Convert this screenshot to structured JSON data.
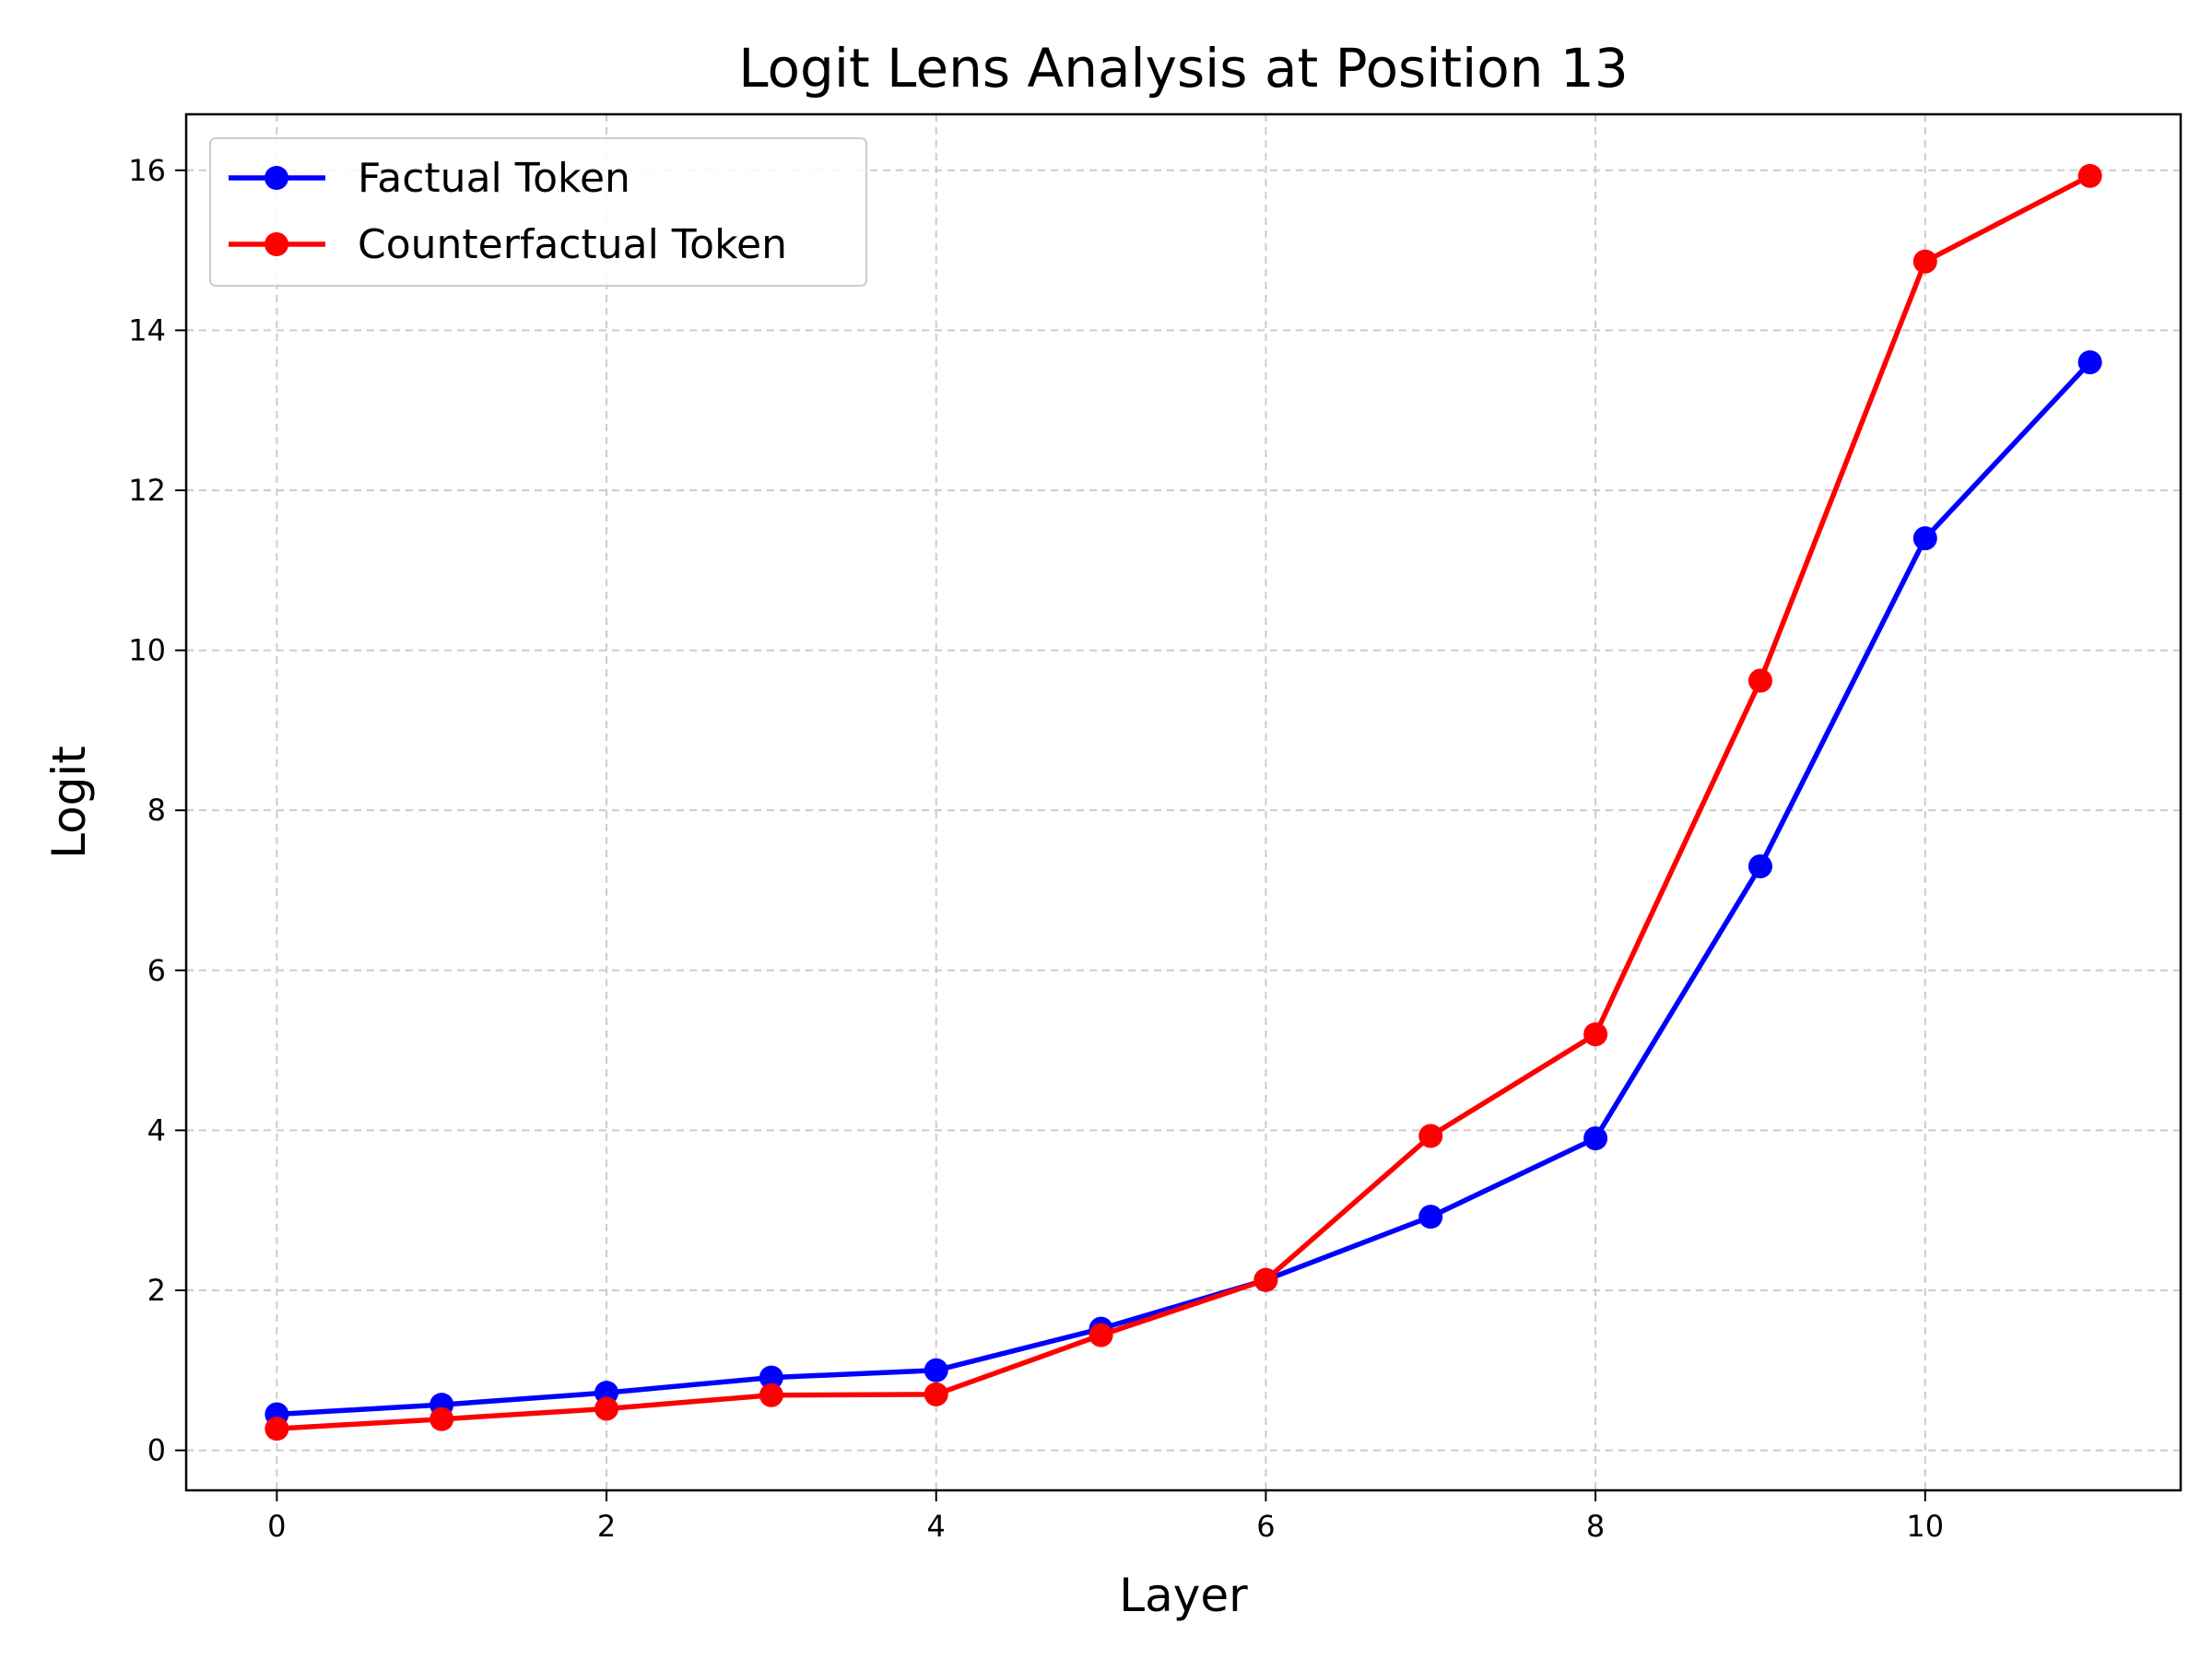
{
  "chart_data": {
    "type": "line",
    "title": "Logit Lens Analysis at Position 13",
    "xlabel": "Layer",
    "ylabel": "Logit",
    "x": [
      0,
      1,
      2,
      3,
      4,
      5,
      6,
      7,
      8,
      9,
      10,
      11
    ],
    "xlim": [
      -0.55,
      11.55
    ],
    "ylim": [
      -0.5,
      16.7
    ],
    "xticks": [
      0,
      2,
      4,
      6,
      8,
      10
    ],
    "yticks": [
      0,
      2,
      4,
      6,
      8,
      10,
      12,
      14,
      16
    ],
    "grid": true,
    "legend_position": "upper-left",
    "series": [
      {
        "name": "Factual Token",
        "color": "#0000ff",
        "marker": "circle",
        "values": [
          0.45,
          0.57,
          0.72,
          0.91,
          1.0,
          1.52,
          2.13,
          2.92,
          3.9,
          7.3,
          11.4,
          13.6
        ]
      },
      {
        "name": "Counterfactual Token",
        "color": "#ff0000",
        "marker": "circle",
        "values": [
          0.27,
          0.39,
          0.52,
          0.69,
          0.7,
          1.44,
          2.13,
          3.93,
          5.2,
          9.62,
          14.86,
          15.93
        ]
      }
    ]
  }
}
